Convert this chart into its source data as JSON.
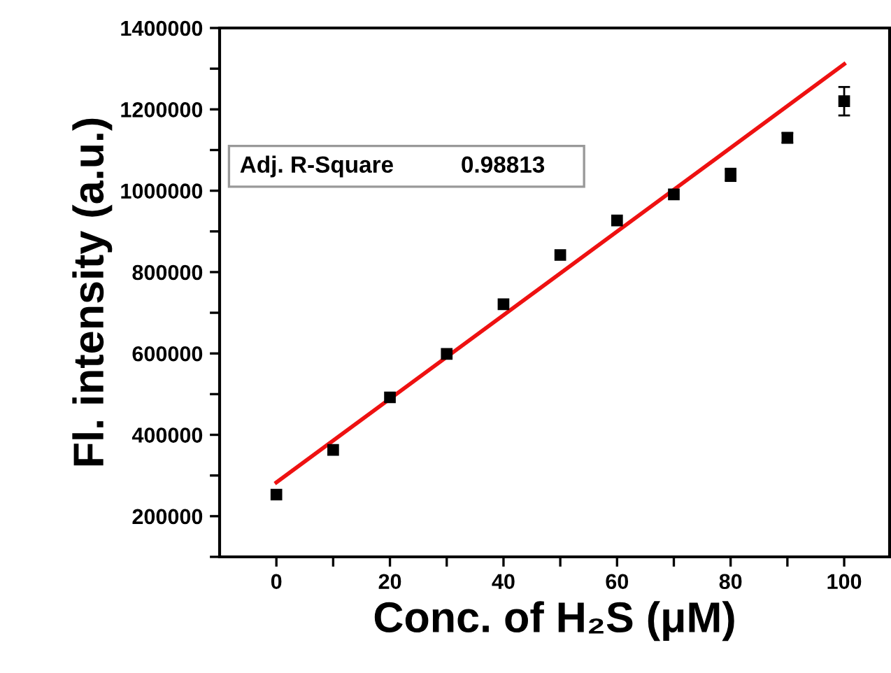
{
  "chart_data": {
    "type": "scatter",
    "xlabel": "Conc. of H₂S (μM)",
    "ylabel": "Fl. intensity (a.u.)",
    "x": [
      0,
      10,
      20,
      30,
      40,
      50,
      60,
      70,
      80,
      90,
      100
    ],
    "series": [
      {
        "color": "#000000",
        "marker": "square",
        "values": [
          253000,
          363000,
          492000,
          599000,
          721000,
          842000,
          927000,
          991000,
          1039000,
          1130000,
          1220000
        ],
        "errors": [
          null,
          null,
          null,
          null,
          null,
          null,
          null,
          null,
          15000,
          12000,
          35000
        ]
      },
      {
        "type": "line",
        "color": "#ee1111",
        "x": [
          0,
          100
        ],
        "values": [
          283000,
          1311000
        ]
      }
    ],
    "xlim": [
      -10,
      108
    ],
    "ylim": [
      100000,
      1400000
    ],
    "xticks": [
      0,
      {
        "value": 10,
        "label": null
      },
      20,
      {
        "value": 30,
        "label": null
      },
      40,
      {
        "value": 50,
        "label": null
      },
      60,
      {
        "value": 70,
        "label": null
      },
      80,
      {
        "value": 90,
        "label": null
      },
      100
    ],
    "yticks": [
      {
        "value": 100000,
        "label": null
      },
      200000,
      {
        "value": 300000,
        "label": null
      },
      400000,
      {
        "value": 500000,
        "label": null
      },
      600000,
      {
        "value": 700000,
        "label": null
      },
      800000,
      {
        "value": 900000,
        "label": null
      },
      1000000,
      {
        "value": 1100000,
        "label": null
      },
      1200000,
      {
        "value": 1300000,
        "label": null
      },
      1400000
    ],
    "annotations": [
      "Adj. R-Square",
      "0.98813"
    ],
    "grid": false,
    "legend": false
  }
}
